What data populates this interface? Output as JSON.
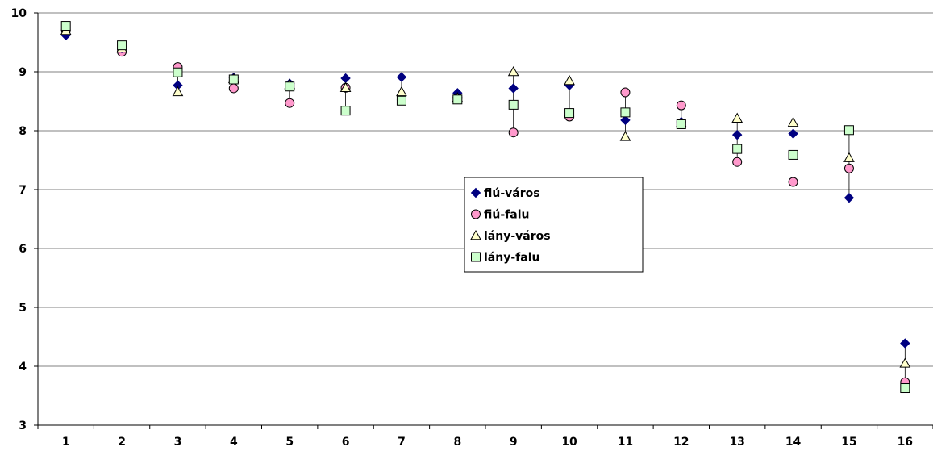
{
  "chart_data": {
    "type": "scatter",
    "title": "",
    "xlabel": "",
    "ylabel": "",
    "categories": [
      "1",
      "2",
      "3",
      "4",
      "5",
      "6",
      "7",
      "8",
      "9",
      "10",
      "11",
      "12",
      "13",
      "14",
      "15",
      "16"
    ],
    "ylim": [
      3,
      10
    ],
    "yticks": [
      "3",
      "4",
      "5",
      "6",
      "7",
      "8",
      "9",
      "10"
    ],
    "grid": "horizontal",
    "legend_position": "center-right",
    "connector_lines": "vertical high-low lines per category",
    "series": [
      {
        "name": "fiú-város",
        "marker": "diamond",
        "color": "#000080",
        "values": [
          9.62,
          9.4,
          8.77,
          8.9,
          8.8,
          8.89,
          8.91,
          8.64,
          8.72,
          8.77,
          8.18,
          8.15,
          7.93,
          7.95,
          6.86,
          4.39
        ]
      },
      {
        "name": "fiú-falu",
        "marker": "circle",
        "color": "#ff99cc",
        "values": [
          9.7,
          9.34,
          9.08,
          8.72,
          8.47,
          8.73,
          8.52,
          8.56,
          7.97,
          8.24,
          8.65,
          8.43,
          7.47,
          7.13,
          7.36,
          3.73
        ]
      },
      {
        "name": "lány-város",
        "marker": "triangle",
        "color": "#ffffcc",
        "values": [
          9.7,
          9.4,
          8.66,
          8.88,
          8.78,
          8.73,
          8.66,
          8.56,
          9.0,
          8.85,
          7.9,
          8.13,
          8.21,
          8.14,
          7.54,
          4.05
        ]
      },
      {
        "name": "lány-falu",
        "marker": "square",
        "color": "#ccffcc",
        "values": [
          9.78,
          9.45,
          8.99,
          8.87,
          8.75,
          8.34,
          8.51,
          8.53,
          8.44,
          8.3,
          8.31,
          8.11,
          7.69,
          7.59,
          8.01,
          3.63
        ]
      }
    ]
  }
}
